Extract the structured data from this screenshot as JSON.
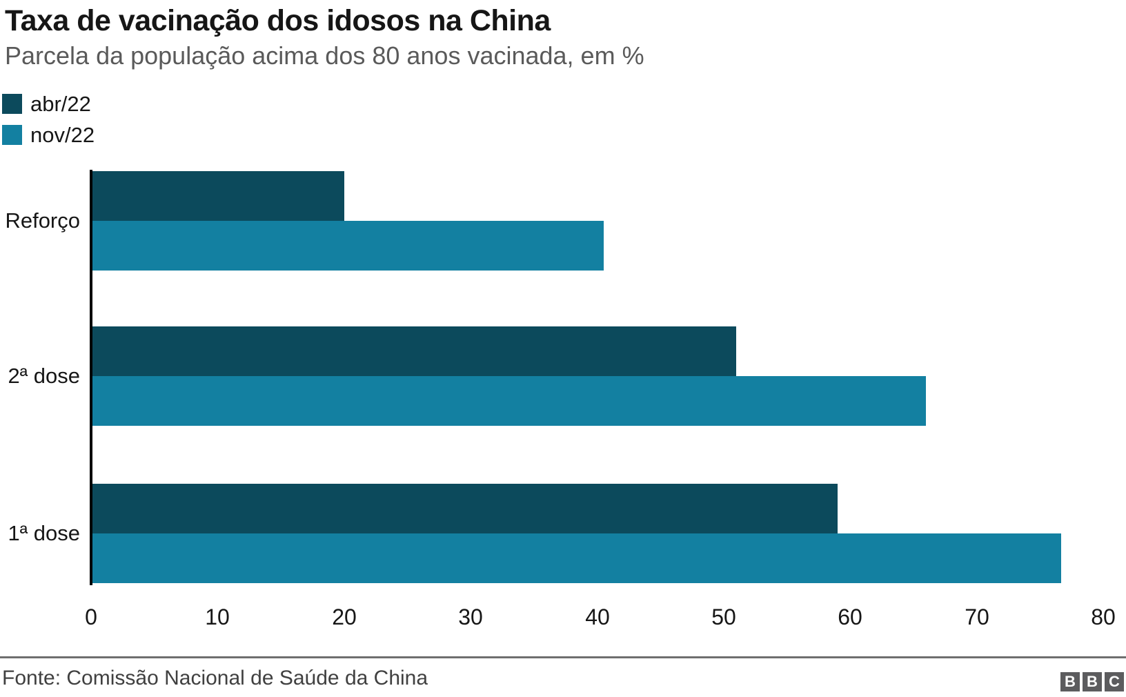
{
  "header": {
    "title": "Taxa de vacinação dos idosos na China",
    "subtitle": "Parcela da população acima dos 80 anos vacinada, em %"
  },
  "legend": {
    "items": [
      {
        "label": "abr/22",
        "color": "#0c4a5c"
      },
      {
        "label": "nov/22",
        "color": "#1380a1"
      }
    ]
  },
  "chart_data": {
    "type": "bar",
    "orientation": "horizontal",
    "title": "Taxa de vacinação dos idosos na China",
    "subtitle": "Parcela da população acima dos 80 anos vacinada, em %",
    "categories": [
      "Reforço",
      "2ª dose",
      "1ª dose"
    ],
    "series": [
      {
        "name": "abr/22",
        "color": "#0c4a5c",
        "values": [
          20,
          51,
          59
        ]
      },
      {
        "name": "nov/22",
        "color": "#1380a1",
        "values": [
          40.5,
          66,
          76.7
        ]
      }
    ],
    "xlabel": "",
    "ylabel": "",
    "xlim": [
      0,
      80
    ],
    "xticks": [
      0,
      10,
      20,
      30,
      40,
      50,
      60,
      70,
      80
    ],
    "grid": false,
    "legend_position": "top-left"
  },
  "footer": {
    "source": "Fonte: Comissão Nacional de Saúde da China",
    "logo_letters": [
      "B",
      "B",
      "C"
    ]
  }
}
